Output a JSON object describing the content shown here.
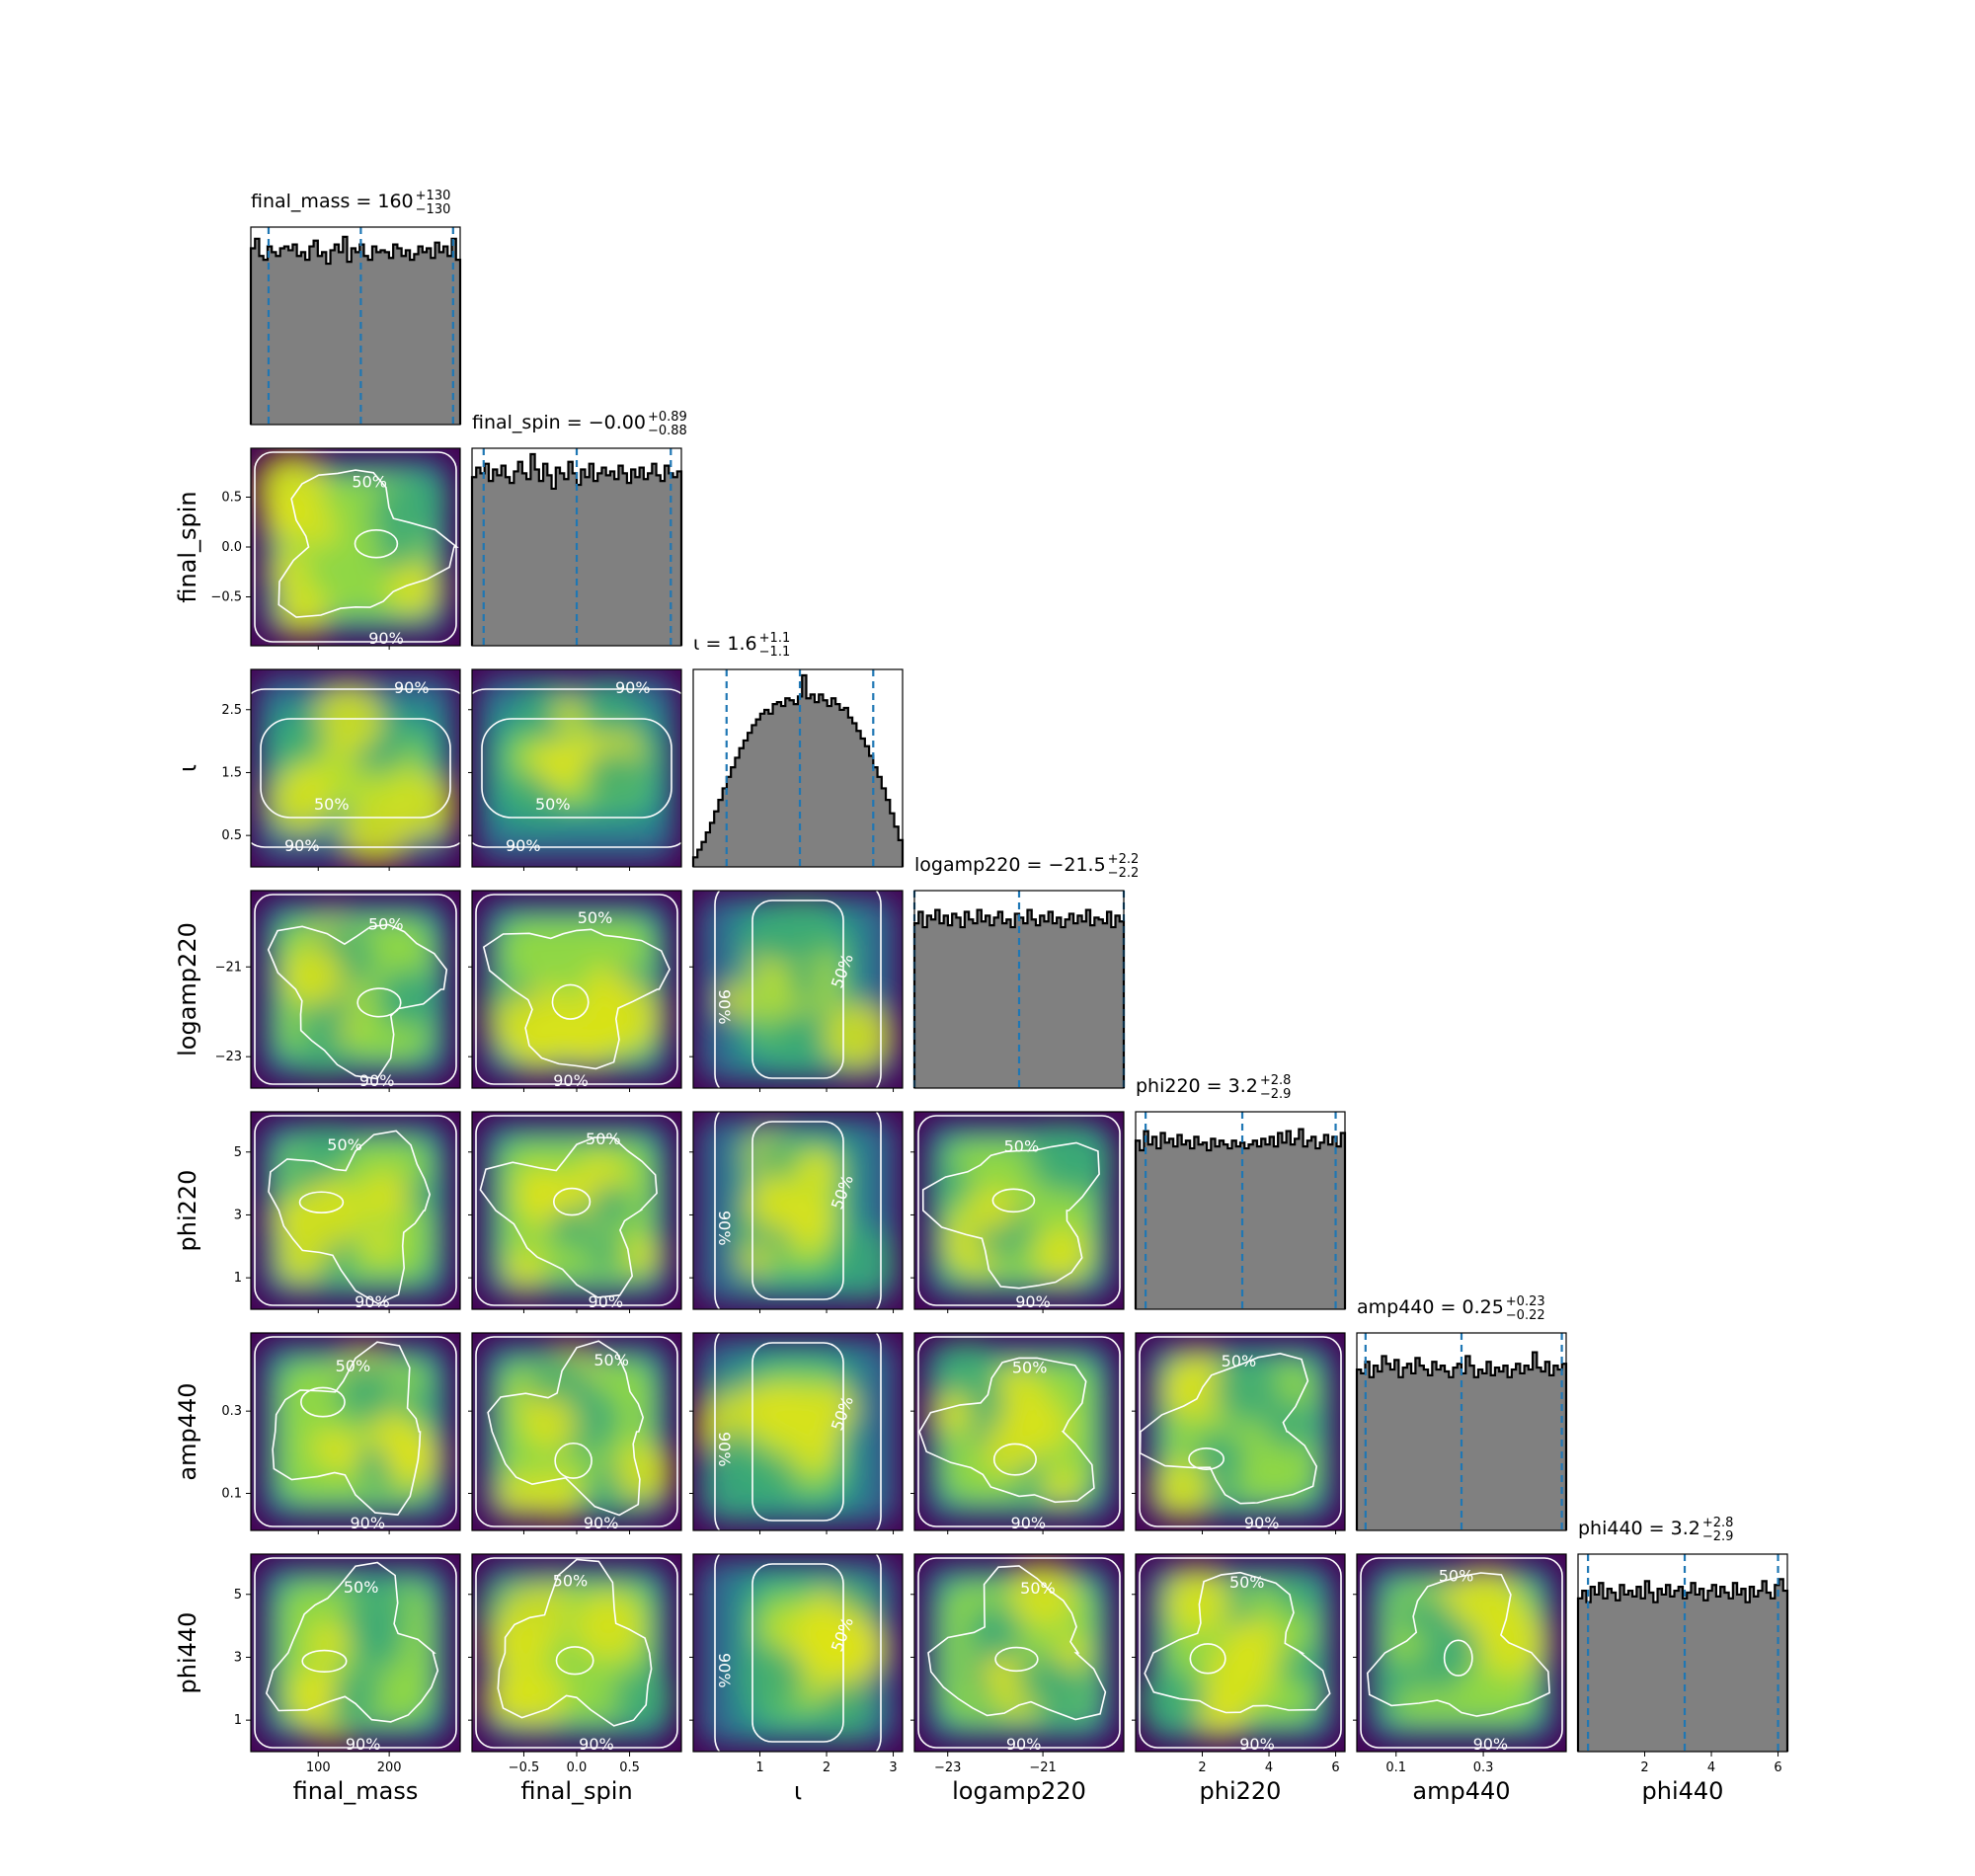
{
  "chart_data": {
    "type": "corner",
    "parameters": [
      {
        "name": "final_mass",
        "axis_label": "final_mass",
        "range": [
          5,
          300
        ],
        "ticks": [
          {
            "v": 100,
            "label": "100"
          },
          {
            "v": 200,
            "label": "200"
          }
        ],
        "median": 160,
        "err_plus": 130,
        "err_minus": 130,
        "title_main": "final_mass = 160",
        "title_sup": "+130",
        "title_sub": "−130",
        "hist": [
          0.92,
          0.97,
          0.88,
          0.86,
          0.93,
          0.9,
          0.88,
          0.92,
          0.93,
          0.91,
          0.94,
          0.88,
          0.9,
          0.86,
          0.93,
          0.96,
          0.88,
          0.9,
          0.84,
          0.91,
          0.94,
          0.9,
          0.98,
          0.85,
          0.92,
          0.9,
          0.94,
          0.88,
          0.86,
          0.93,
          0.9,
          0.91,
          0.9,
          0.87,
          0.94,
          0.92,
          0.88,
          0.91,
          0.86,
          0.89,
          0.93,
          0.9,
          0.92,
          0.87,
          0.95,
          0.9,
          0.93,
          0.88,
          0.97,
          0.86
        ]
      },
      {
        "name": "final_spin",
        "axis_label": "final_spin",
        "range": [
          -0.99,
          0.99
        ],
        "ticks": [
          {
            "v": -0.5,
            "label": "−0.5"
          },
          {
            "v": 0.0,
            "label": "0.0"
          },
          {
            "v": 0.5,
            "label": "0.5"
          }
        ],
        "median": 0.0,
        "err_plus": 0.89,
        "err_minus": 0.88,
        "title_main": "final_spin = −0.00",
        "title_sup": "+0.89",
        "title_sub": "−0.88",
        "hist": [
          0.88,
          0.93,
          0.9,
          0.95,
          0.86,
          0.92,
          0.89,
          0.94,
          0.88,
          0.85,
          0.91,
          0.96,
          0.9,
          0.87,
          1.0,
          0.92,
          0.86,
          0.95,
          0.89,
          0.82,
          0.93,
          0.9,
          0.87,
          0.96,
          0.9,
          0.84,
          0.92,
          0.88,
          0.95,
          0.86,
          0.9,
          0.93,
          0.89,
          0.91,
          0.87,
          0.94,
          0.9,
          0.85,
          0.92,
          0.88,
          0.93,
          0.87,
          0.9,
          0.95,
          0.89,
          0.86,
          0.94,
          0.9,
          0.88,
          0.91
        ]
      },
      {
        "name": "iota",
        "axis_label": "ι",
        "range": [
          0.0,
          3.14
        ],
        "ticks": [
          {
            "v": 1,
            "label": "1"
          },
          {
            "v": 2,
            "label": "2"
          },
          {
            "v": 3,
            "label": "3"
          }
        ],
        "y_ticks": [
          {
            "v": 0.5,
            "label": "0.5"
          },
          {
            "v": 1.5,
            "label": "1.5"
          },
          {
            "v": 2.5,
            "label": "2.5"
          }
        ],
        "median": 1.6,
        "err_plus": 1.1,
        "err_minus": 1.1,
        "title_main": "ι = 1.6",
        "title_sup": "+1.1",
        "title_sub": "−1.1",
        "hist": [
          0.05,
          0.09,
          0.13,
          0.18,
          0.23,
          0.29,
          0.35,
          0.41,
          0.47,
          0.52,
          0.57,
          0.62,
          0.66,
          0.7,
          0.74,
          0.77,
          0.8,
          0.82,
          0.8,
          0.85,
          0.86,
          0.84,
          0.88,
          0.87,
          0.85,
          0.89,
          1.0,
          0.88,
          0.9,
          0.86,
          0.9,
          0.87,
          0.84,
          0.88,
          0.85,
          0.82,
          0.83,
          0.78,
          0.75,
          0.71,
          0.67,
          0.63,
          0.58,
          0.52,
          0.47,
          0.41,
          0.35,
          0.28,
          0.21,
          0.14
        ]
      },
      {
        "name": "logamp220",
        "axis_label": "logamp220",
        "range": [
          -23.7,
          -19.3
        ],
        "ticks": [
          {
            "v": -23,
            "label": "−23"
          },
          {
            "v": -21,
            "label": "−21"
          }
        ],
        "median": -21.5,
        "err_plus": 2.2,
        "err_minus": 2.2,
        "title_main": "logamp220 = −21.5",
        "title_sup": "+2.2",
        "title_sub": "−2.2",
        "hist": [
          0.86,
          0.92,
          0.84,
          0.9,
          0.88,
          0.93,
          0.86,
          0.9,
          0.85,
          0.91,
          0.89,
          0.84,
          0.92,
          0.88,
          0.86,
          0.93,
          0.87,
          0.9,
          0.85,
          0.89,
          0.92,
          0.86,
          0.88,
          0.84,
          0.91,
          0.89,
          0.86,
          0.93,
          0.88,
          0.85,
          0.9,
          0.87,
          0.92,
          0.86,
          0.89,
          0.84,
          0.88,
          0.91,
          0.86,
          0.9,
          0.87,
          0.93,
          0.85,
          0.89,
          0.88,
          0.86,
          0.92,
          0.84,
          0.9,
          0.87
        ]
      },
      {
        "name": "phi220",
        "axis_label": "phi220",
        "range": [
          0.0,
          6.28
        ],
        "ticks": [
          {
            "v": 2,
            "label": "2"
          },
          {
            "v": 4,
            "label": "4"
          },
          {
            "v": 6,
            "label": "6"
          }
        ],
        "y_ticks": [
          {
            "v": 1,
            "label": "1"
          },
          {
            "v": 3,
            "label": "3"
          },
          {
            "v": 5,
            "label": "5"
          }
        ],
        "median": 3.2,
        "err_plus": 2.8,
        "err_minus": 2.9,
        "title_main": "phi220 = 3.2",
        "title_sup": "+2.8",
        "title_sub": "−2.9",
        "hist": [
          0.88,
          0.83,
          0.93,
          0.86,
          0.9,
          0.84,
          0.92,
          0.87,
          0.89,
          0.85,
          0.91,
          0.86,
          0.88,
          0.84,
          0.9,
          0.86,
          0.87,
          0.83,
          0.89,
          0.85,
          0.88,
          0.86,
          0.84,
          0.88,
          0.85,
          0.87,
          0.84,
          0.86,
          0.88,
          0.85,
          0.89,
          0.86,
          0.9,
          0.85,
          0.92,
          0.87,
          0.93,
          0.86,
          0.89,
          0.94,
          0.85,
          0.88,
          0.9,
          0.84,
          0.87,
          0.91,
          0.86,
          0.9,
          0.85,
          0.92
        ]
      },
      {
        "name": "amp440",
        "axis_label": "amp440",
        "range": [
          0.01,
          0.49
        ],
        "ticks": [
          {
            "v": 0.1,
            "label": "0.1"
          },
          {
            "v": 0.3,
            "label": "0.3"
          }
        ],
        "median": 0.25,
        "err_plus": 0.23,
        "err_minus": 0.22,
        "title_main": "amp440 = 0.25",
        "title_sup": "+0.23",
        "title_sub": "−0.22",
        "hist": [
          0.84,
          0.82,
          0.88,
          0.8,
          0.86,
          0.83,
          0.91,
          0.87,
          0.84,
          0.89,
          0.8,
          0.85,
          0.87,
          0.82,
          0.9,
          0.86,
          0.84,
          0.81,
          0.88,
          0.84,
          0.86,
          0.83,
          0.8,
          0.85,
          0.87,
          0.82,
          0.91,
          0.86,
          0.8,
          0.84,
          0.82,
          0.88,
          0.81,
          0.85,
          0.83,
          0.86,
          0.8,
          0.84,
          0.87,
          0.82,
          0.86,
          0.84,
          0.93,
          0.85,
          0.83,
          0.88,
          0.81,
          0.86,
          0.84,
          0.87
        ]
      },
      {
        "name": "phi440",
        "axis_label": "phi440",
        "range": [
          0.0,
          6.28
        ],
        "ticks": [
          {
            "v": 2,
            "label": "2"
          },
          {
            "v": 4,
            "label": "4"
          },
          {
            "v": 6,
            "label": "6"
          }
        ],
        "y_ticks": [
          {
            "v": 1,
            "label": "1"
          },
          {
            "v": 3,
            "label": "3"
          },
          {
            "v": 5,
            "label": "5"
          }
        ],
        "median": 3.2,
        "err_plus": 2.8,
        "err_minus": 2.9,
        "title_main": "phi440 = 3.2",
        "title_sup": "+2.8",
        "title_sub": "−2.9",
        "hist": [
          0.8,
          0.84,
          0.78,
          0.86,
          0.82,
          0.88,
          0.8,
          0.85,
          0.83,
          0.79,
          0.87,
          0.82,
          0.84,
          0.81,
          0.86,
          0.8,
          0.89,
          0.83,
          0.78,
          0.85,
          0.82,
          0.87,
          0.81,
          0.84,
          0.86,
          0.8,
          0.83,
          0.88,
          0.82,
          0.85,
          0.79,
          0.84,
          0.87,
          0.81,
          0.86,
          0.83,
          0.8,
          0.88,
          0.82,
          0.85,
          0.78,
          0.86,
          0.81,
          0.84,
          0.89,
          0.83,
          0.8,
          0.87,
          0.9,
          0.84
        ]
      }
    ],
    "y_ticks_override": {
      "final_spin": [
        {
          "v": -0.5,
          "label": "−0.5"
        },
        {
          "v": 0.0,
          "label": "0.0"
        },
        {
          "v": 0.5,
          "label": "0.5"
        }
      ],
      "logamp220": [
        {
          "v": -23,
          "label": "−23"
        },
        {
          "v": -21,
          "label": "−21"
        }
      ],
      "amp440": [
        {
          "v": 0.1,
          "label": "0.1"
        },
        {
          "v": 0.3,
          "label": "0.3"
        }
      ]
    },
    "contour_levels": [
      "50%",
      "90%"
    ],
    "colors": {
      "hist_fill": "#808080",
      "hist_edge": "#000000",
      "quantile_line": "#1f77b4",
      "contour": "#ffffff",
      "colormap": "viridis"
    }
  }
}
